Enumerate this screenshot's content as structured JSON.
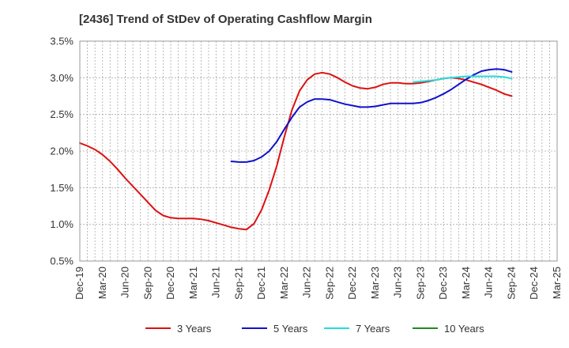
{
  "chart_data": {
    "type": "line",
    "title": "[2436]  Trend of StDev of Operating Cashflow Margin",
    "xlabel": "",
    "ylabel": "",
    "ylim": [
      0.5,
      3.5
    ],
    "yticks": [
      "0.5%",
      "1.0%",
      "1.5%",
      "2.0%",
      "2.5%",
      "3.0%",
      "3.5%"
    ],
    "xticks": [
      "Dec-19",
      "Mar-20",
      "Jun-20",
      "Sep-20",
      "Dec-20",
      "Mar-21",
      "Jun-21",
      "Sep-21",
      "Dec-21",
      "Mar-22",
      "Jun-22",
      "Sep-22",
      "Dec-22",
      "Mar-23",
      "Jun-23",
      "Sep-23",
      "Dec-23",
      "Mar-24",
      "Jun-24",
      "Sep-24",
      "Dec-24",
      "Mar-25"
    ],
    "grid": true,
    "legend_position": "bottom",
    "series": [
      {
        "name": "3 Years",
        "color": "#dd1111",
        "points": [
          [
            0,
            2.11
          ],
          [
            1,
            2.07
          ],
          [
            2,
            2.02
          ],
          [
            3,
            1.95
          ],
          [
            4,
            1.86
          ],
          [
            5,
            1.75
          ],
          [
            6,
            1.63
          ],
          [
            7,
            1.52
          ],
          [
            8,
            1.41
          ],
          [
            9,
            1.3
          ],
          [
            10,
            1.19
          ],
          [
            11,
            1.12
          ],
          [
            12,
            1.09
          ],
          [
            13,
            1.08
          ],
          [
            14,
            1.08
          ],
          [
            15,
            1.08
          ],
          [
            16,
            1.07
          ],
          [
            17,
            1.05
          ],
          [
            18,
            1.02
          ],
          [
            19,
            0.99
          ],
          [
            20,
            0.96
          ],
          [
            21,
            0.94
          ],
          [
            22,
            0.93
          ],
          [
            23,
            1.01
          ],
          [
            24,
            1.2
          ],
          [
            25,
            1.47
          ],
          [
            26,
            1.8
          ],
          [
            27,
            2.2
          ],
          [
            28,
            2.56
          ],
          [
            29,
            2.82
          ],
          [
            30,
            2.97
          ],
          [
            31,
            3.05
          ],
          [
            32,
            3.07
          ],
          [
            33,
            3.05
          ],
          [
            34,
            3.0
          ],
          [
            35,
            2.94
          ],
          [
            36,
            2.89
          ],
          [
            37,
            2.86
          ],
          [
            38,
            2.85
          ],
          [
            39,
            2.87
          ],
          [
            40,
            2.91
          ],
          [
            41,
            2.93
          ],
          [
            42,
            2.93
          ],
          [
            43,
            2.92
          ],
          [
            44,
            2.92
          ],
          [
            45,
            2.93
          ],
          [
            46,
            2.95
          ],
          [
            47,
            2.97
          ],
          [
            48,
            2.99
          ],
          [
            49,
            3.0
          ],
          [
            50,
            2.99
          ],
          [
            51,
            2.97
          ],
          [
            52,
            2.94
          ],
          [
            53,
            2.91
          ],
          [
            54,
            2.87
          ],
          [
            55,
            2.83
          ],
          [
            56,
            2.78
          ],
          [
            57,
            2.75
          ]
        ]
      },
      {
        "name": "5 Years",
        "color": "#1111cc",
        "points": [
          [
            20,
            1.86
          ],
          [
            21,
            1.85
          ],
          [
            22,
            1.85
          ],
          [
            23,
            1.87
          ],
          [
            24,
            1.92
          ],
          [
            25,
            2.0
          ],
          [
            26,
            2.13
          ],
          [
            27,
            2.3
          ],
          [
            28,
            2.46
          ],
          [
            29,
            2.6
          ],
          [
            30,
            2.67
          ],
          [
            31,
            2.71
          ],
          [
            32,
            2.71
          ],
          [
            33,
            2.7
          ],
          [
            34,
            2.67
          ],
          [
            35,
            2.64
          ],
          [
            36,
            2.62
          ],
          [
            37,
            2.6
          ],
          [
            38,
            2.6
          ],
          [
            39,
            2.61
          ],
          [
            40,
            2.63
          ],
          [
            41,
            2.65
          ],
          [
            42,
            2.65
          ],
          [
            43,
            2.65
          ],
          [
            44,
            2.65
          ],
          [
            45,
            2.66
          ],
          [
            46,
            2.69
          ],
          [
            47,
            2.73
          ],
          [
            48,
            2.78
          ],
          [
            49,
            2.84
          ],
          [
            50,
            2.91
          ],
          [
            51,
            2.98
          ],
          [
            52,
            3.04
          ],
          [
            53,
            3.09
          ],
          [
            54,
            3.11
          ],
          [
            55,
            3.12
          ],
          [
            56,
            3.11
          ],
          [
            57,
            3.08
          ]
        ]
      },
      {
        "name": "7 Years",
        "color": "#22dddd",
        "points": [
          [
            44,
            2.94
          ],
          [
            45,
            2.95
          ],
          [
            46,
            2.96
          ],
          [
            47,
            2.97
          ],
          [
            48,
            2.99
          ],
          [
            49,
            3.0
          ],
          [
            50,
            3.01
          ],
          [
            51,
            3.02
          ],
          [
            52,
            3.02
          ],
          [
            53,
            3.02
          ],
          [
            54,
            3.02
          ],
          [
            55,
            3.02
          ],
          [
            56,
            3.01
          ],
          [
            57,
            2.99
          ]
        ]
      },
      {
        "name": "10 Years",
        "color": "#228822",
        "points": []
      }
    ]
  }
}
